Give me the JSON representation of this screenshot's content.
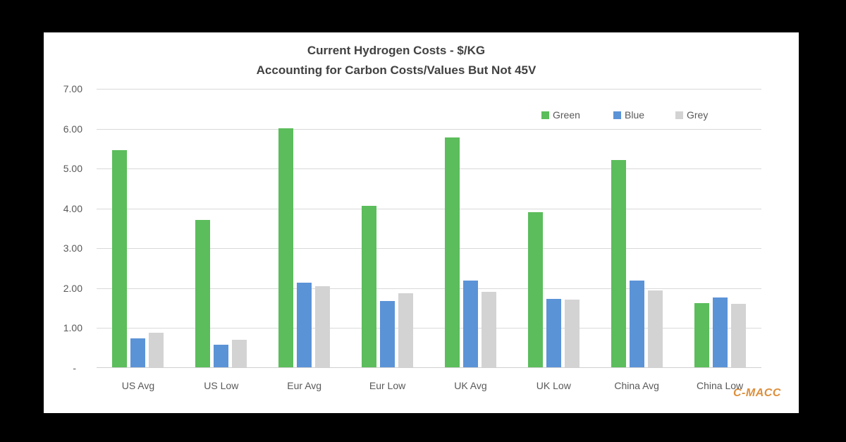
{
  "chart_data": {
    "type": "bar",
    "title_line1": "Current Hydrogen Costs - $/KG",
    "title_line2": "Accounting for Carbon Costs/Values But Not 45V",
    "categories": [
      "US Avg",
      "US Low",
      "Eur Avg",
      "Eur Low",
      "UK Avg",
      "UK Low",
      "China Avg",
      "China Low"
    ],
    "series": [
      {
        "name": "Green",
        "color": "#5bbd5b",
        "values": [
          5.45,
          3.7,
          6.0,
          4.05,
          5.76,
          3.89,
          5.2,
          1.61
        ]
      },
      {
        "name": "Blue",
        "color": "#5b93d7",
        "values": [
          0.73,
          0.56,
          2.12,
          1.66,
          2.18,
          1.72,
          2.18,
          1.75
        ]
      },
      {
        "name": "Grey",
        "color": "#d3d3d3",
        "values": [
          0.87,
          0.69,
          2.03,
          1.85,
          1.89,
          1.7,
          1.93,
          1.59
        ]
      }
    ],
    "yaxis": {
      "min": 0,
      "max": 7,
      "step": 1,
      "tick_labels": [
        "-",
        "1.00",
        "2.00",
        "3.00",
        "4.00",
        "5.00",
        "6.00",
        "7.00"
      ]
    },
    "xlabel": "",
    "ylabel": "",
    "grid": true,
    "legend_position": "top-right"
  },
  "branding": {
    "logo_text": "C-MACC",
    "color": "#dd8f3c"
  },
  "colors": {
    "frame_background": "#000000",
    "card_background": "#ffffff",
    "gridline": "#d9d9d9",
    "axis_text": "#595959",
    "title_text": "#414141"
  }
}
